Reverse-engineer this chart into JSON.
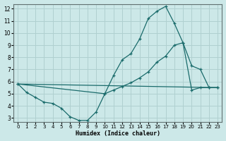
{
  "xlabel": "Humidex (Indice chaleur)",
  "xlim": [
    -0.5,
    23.5
  ],
  "ylim": [
    2.7,
    12.4
  ],
  "xticks": [
    0,
    1,
    2,
    3,
    4,
    5,
    6,
    7,
    8,
    9,
    10,
    11,
    12,
    13,
    14,
    15,
    16,
    17,
    18,
    19,
    20,
    21,
    22,
    23
  ],
  "yticks": [
    3,
    4,
    5,
    6,
    7,
    8,
    9,
    10,
    11,
    12
  ],
  "bg_color": "#cce8e8",
  "grid_color": "#b0d0d0",
  "line_color": "#1a6b6b",
  "line1_x": [
    0,
    1,
    2,
    3,
    4,
    5,
    6,
    7,
    8,
    9,
    10,
    11,
    12,
    13,
    14,
    15,
    16,
    17,
    18,
    19,
    20,
    21,
    22,
    23
  ],
  "line1_y": [
    5.8,
    5.1,
    4.7,
    4.3,
    4.2,
    3.8,
    3.1,
    2.8,
    2.8,
    3.5,
    5.0,
    6.5,
    7.8,
    8.3,
    9.5,
    11.2,
    11.8,
    12.2,
    10.8,
    9.2,
    7.3,
    7.0,
    5.5,
    5.5
  ],
  "line2_x": [
    0,
    23
  ],
  "line2_y": [
    5.8,
    5.5
  ],
  "line3_x": [
    0,
    10,
    11,
    12,
    13,
    14,
    15,
    16,
    17,
    18,
    19,
    20,
    21,
    22,
    23
  ],
  "line3_y": [
    5.8,
    5.0,
    5.3,
    5.6,
    5.9,
    6.3,
    6.8,
    7.6,
    8.1,
    9.0,
    9.2,
    5.3,
    5.5,
    5.5,
    5.5
  ]
}
